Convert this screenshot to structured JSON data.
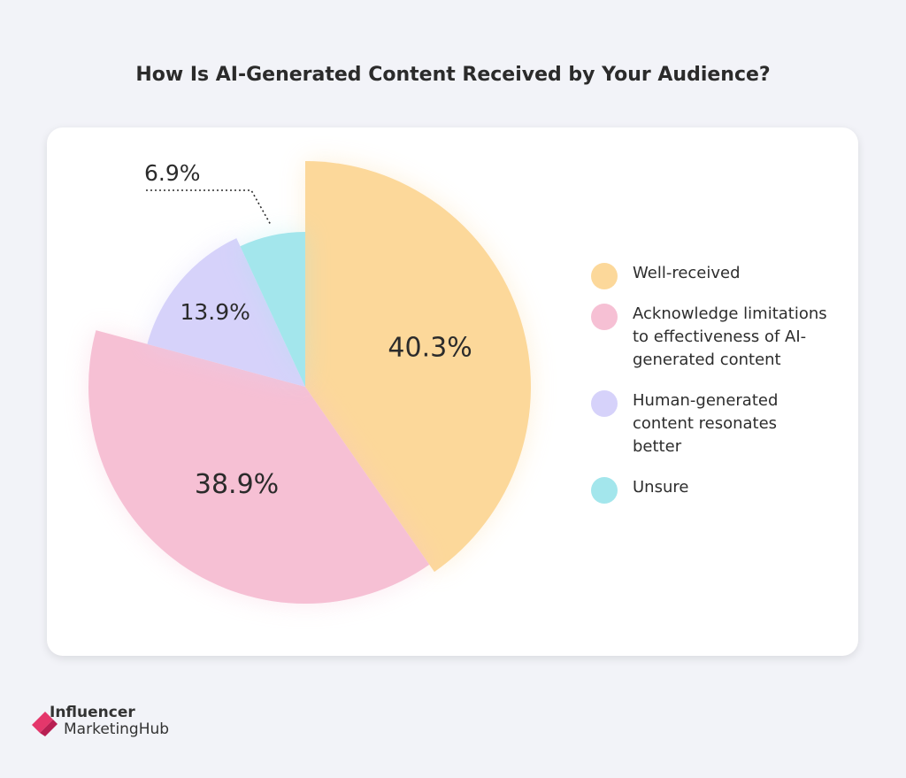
{
  "title": "How Is AI-Generated Content Received by Your Audience?",
  "chart_data": {
    "type": "pie",
    "categories": [
      "Well-received",
      "Acknowledge limitations to effectiveness of AI-generated content",
      "Human-generated content resonates better",
      "Unsure"
    ],
    "values": [
      40.3,
      38.9,
      13.9,
      6.9
    ],
    "value_labels": [
      "40.3%",
      "38.9%",
      "13.9%",
      "6.9%"
    ],
    "colors": [
      "#fcd89a",
      "#f6c0d4",
      "#d6d2fa",
      "#a3e6ec"
    ],
    "legend_position": "right",
    "legend_lines": [
      [
        "Well-received"
      ],
      [
        "Acknowledge limitations",
        "to effectiveness of AI-",
        "generated content"
      ],
      [
        "Human-generated",
        "content resonates",
        "better"
      ],
      [
        "Unsure"
      ]
    ]
  },
  "brand": {
    "name_line1": "Influencer",
    "name_line2": "MarketingHub",
    "icon": "influencer-marketing-hub-logo-icon",
    "accent_color": "#e4376b"
  }
}
